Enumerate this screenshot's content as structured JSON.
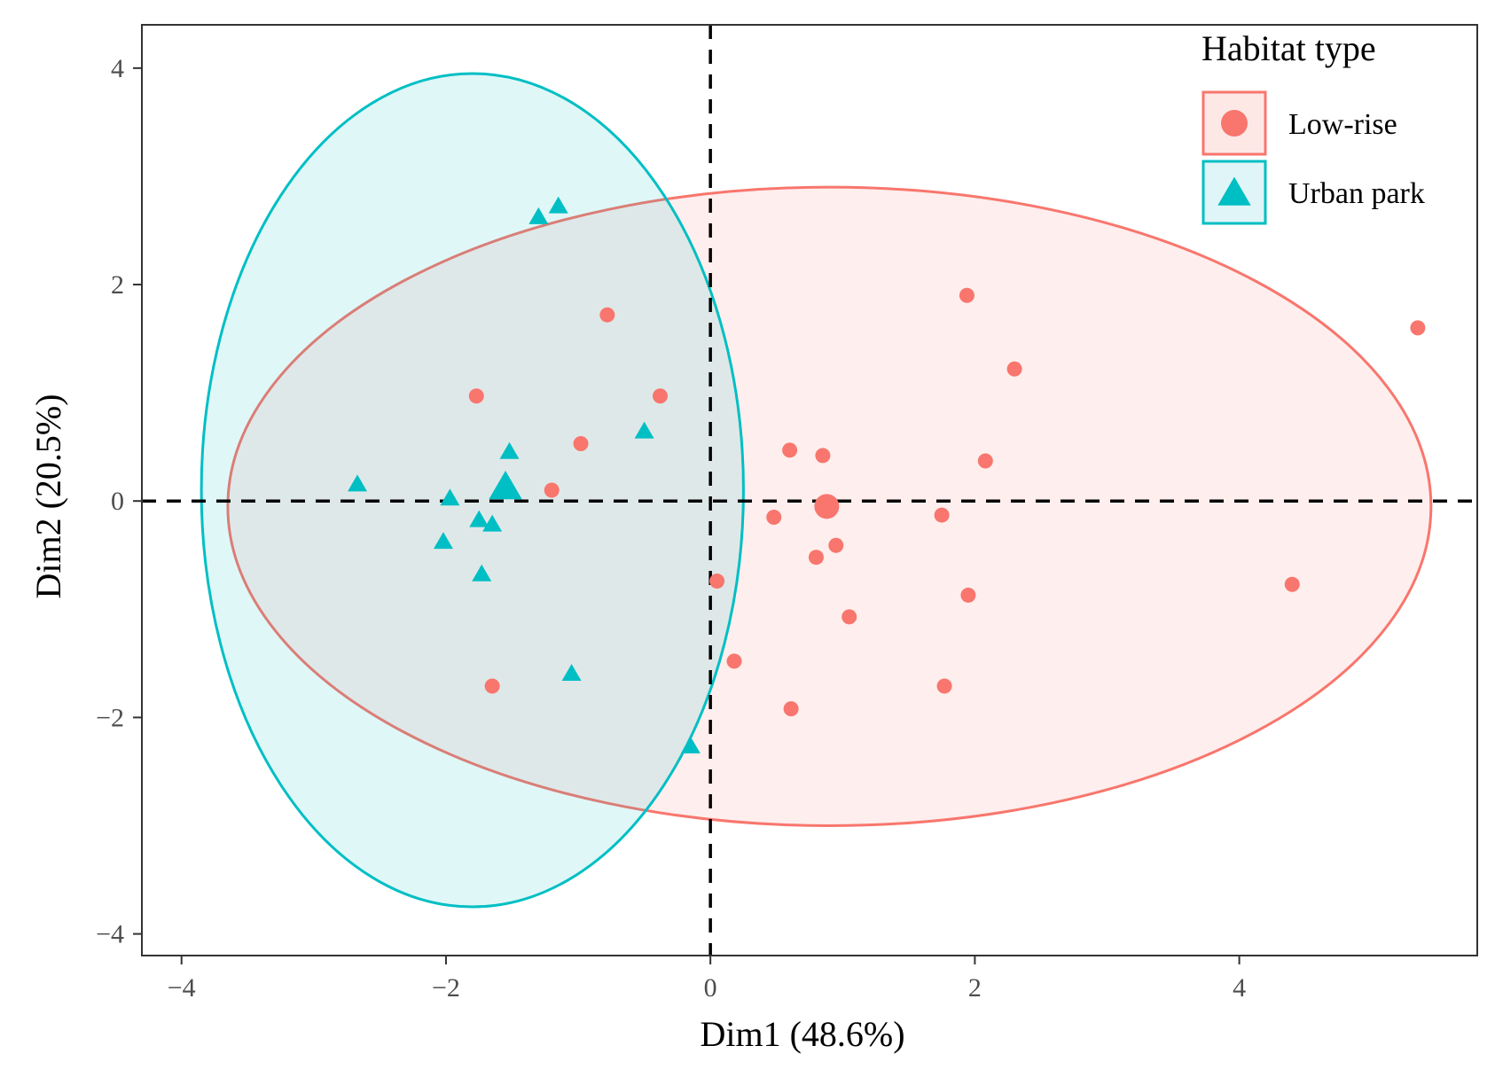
{
  "chart_data": {
    "type": "scatter",
    "title": "",
    "xlabel": "Dim1 (48.6%)",
    "ylabel": "Dim2 (20.5%)",
    "xlim": [
      -4.3,
      5.8
    ],
    "ylim": [
      -4.2,
      4.4
    ],
    "x_ticks": [
      {
        "value": -4,
        "label": "−4"
      },
      {
        "value": -2,
        "label": "−2"
      },
      {
        "value": 0,
        "label": "0"
      },
      {
        "value": 2,
        "label": "2"
      },
      {
        "value": 4,
        "label": "4"
      }
    ],
    "y_ticks": [
      {
        "value": -4,
        "label": "−4"
      },
      {
        "value": -2,
        "label": "−2"
      },
      {
        "value": 0,
        "label": "0"
      },
      {
        "value": 2,
        "label": "2"
      },
      {
        "value": 4,
        "label": "4"
      }
    ],
    "grid": false,
    "reference_lines": {
      "x": 0,
      "y": 0,
      "style": "dashed"
    },
    "legend": {
      "title": "Habitat type",
      "position": "top-right"
    },
    "series": [
      {
        "name": "Low-rise",
        "marker": "circle",
        "color": "#F8766D",
        "fill": "#FDE8E6",
        "centroid": [
          0.88,
          -0.05
        ],
        "ellipse": {
          "cx": 0.9,
          "cy": -0.05,
          "rx": 4.55,
          "ry": 2.95,
          "rotate_deg": 0
        },
        "points": [
          [
            -0.78,
            1.72
          ],
          [
            1.94,
            1.9
          ],
          [
            5.35,
            1.6
          ],
          [
            2.3,
            1.22
          ],
          [
            -1.77,
            0.97
          ],
          [
            -0.38,
            0.97
          ],
          [
            -0.98,
            0.53
          ],
          [
            0.6,
            0.47
          ],
          [
            0.85,
            0.42
          ],
          [
            2.08,
            0.37
          ],
          [
            -1.2,
            0.1
          ],
          [
            0.48,
            -0.15
          ],
          [
            1.75,
            -0.13
          ],
          [
            0.95,
            -0.41
          ],
          [
            0.8,
            -0.52
          ],
          [
            0.05,
            -0.74
          ],
          [
            1.95,
            -0.87
          ],
          [
            4.4,
            -0.77
          ],
          [
            1.05,
            -1.07
          ],
          [
            0.18,
            -1.48
          ],
          [
            -1.65,
            -1.71
          ],
          [
            1.77,
            -1.71
          ],
          [
            0.61,
            -1.92
          ]
        ]
      },
      {
        "name": "Urban park",
        "marker": "triangle",
        "color": "#00BFC4",
        "fill": "#E0F5F7",
        "centroid": [
          -1.55,
          0.12
        ],
        "ellipse": {
          "cx": -1.8,
          "cy": 0.1,
          "rx": 2.05,
          "ry": 3.85,
          "rotate_deg": 0
        },
        "points": [
          [
            -1.3,
            2.62
          ],
          [
            -1.15,
            2.72
          ],
          [
            -0.5,
            0.64
          ],
          [
            -1.52,
            0.45
          ],
          [
            -2.67,
            0.15
          ],
          [
            -1.97,
            0.02
          ],
          [
            -1.75,
            -0.18
          ],
          [
            -1.65,
            -0.22
          ],
          [
            -2.02,
            -0.38
          ],
          [
            -1.73,
            -0.68
          ],
          [
            -1.05,
            -1.6
          ],
          [
            -0.15,
            -2.27
          ]
        ]
      }
    ]
  }
}
